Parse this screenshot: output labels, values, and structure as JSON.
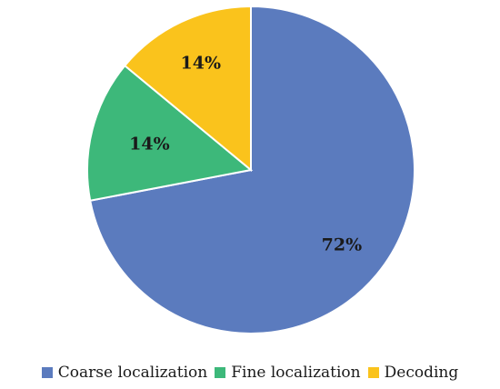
{
  "chart_data": {
    "type": "pie",
    "title": "",
    "start_angle_deg": 90,
    "direction": "clockwise",
    "legend_position": "bottom",
    "slices": [
      {
        "name": "Coarse localization",
        "value": 72,
        "label": "72%",
        "color": "#5B7BBE"
      },
      {
        "name": "Fine localization",
        "value": 14,
        "label": "14%",
        "color": "#3DB87A"
      },
      {
        "name": "Decoding",
        "value": 14,
        "label": "14%",
        "color": "#FAC31C"
      }
    ]
  }
}
